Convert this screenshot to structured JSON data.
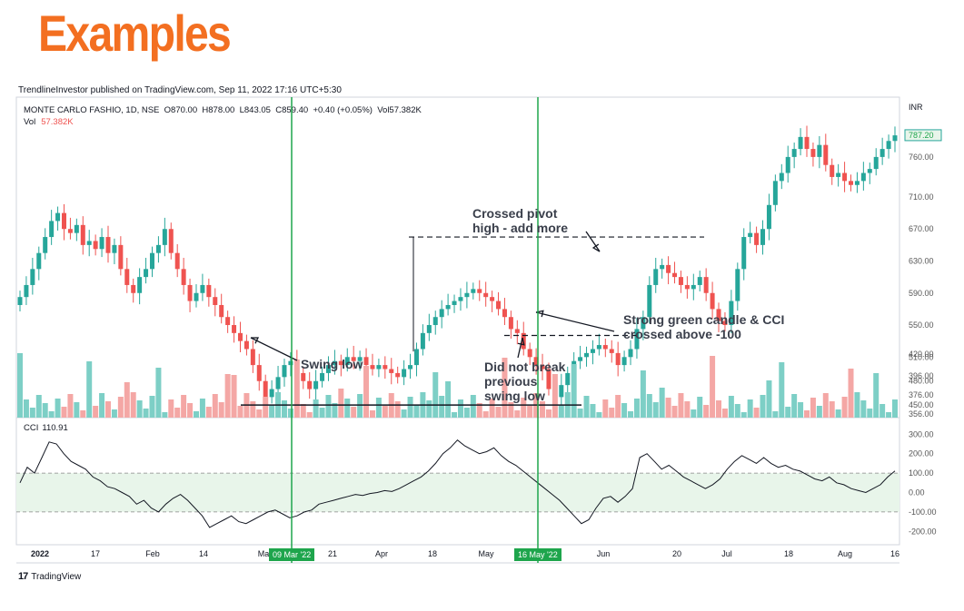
{
  "heading": "Examples",
  "published": "TrendlineInvestor published on TradingView.com, Sep 11, 2022 17:16 UTC+5:30",
  "legend": {
    "symbol": "MONTE CARLO FASHIO, 1D, NSE",
    "open": "O870.00",
    "high": "H878.00",
    "low": "L843.05",
    "close": "C859.40",
    "change": "+0.40 (+0.05%)",
    "volume": "Vol57.382K"
  },
  "vol_label": "Vol",
  "vol_value": "57.382K",
  "cci_label": "CCI",
  "cci_value": "110.91",
  "currency": "INR",
  "last_price": "787.20",
  "annotations": {
    "crossed_pivot_1": "Crossed pivot",
    "crossed_pivot_2": "high - add more",
    "strong_green_1": "Strong green candle & CCI",
    "strong_green_2": "crossed above -100",
    "swing_low": "Swing low",
    "did_not_break_1": "Did not break",
    "did_not_break_2": "previous",
    "did_not_break_3": "swing low"
  },
  "marker_dates": [
    "09 Mar '22",
    "16 May '22"
  ],
  "tradingview_logo": "TradingView",
  "colors": {
    "heading": "#f36f21",
    "up": "#26a69a",
    "down": "#ef5350",
    "marker": "#1ea54c",
    "cci_band": "#e8f5ea"
  },
  "chart_data": [
    {
      "type": "candlestick",
      "title": "MONTE CARLO FASHIO, 1D, NSE",
      "ylabel": "INR",
      "ylim": [
        440,
        820
      ],
      "y_ticks": [
        "760.00",
        "710.00",
        "670.00",
        "630.00",
        "590.00",
        "550.00",
        "510.00",
        "480.00",
        "450.00"
      ],
      "x_ticks": [
        "2022",
        "17",
        "Feb",
        "14",
        "Ma",
        "21",
        "Apr",
        "18",
        "May",
        "Jun",
        "20",
        "Jul",
        "18",
        "Aug",
        "16"
      ],
      "pivot_high": 660,
      "breakout_level": 537,
      "swing_low_level": 450,
      "close": [
        585,
        600,
        620,
        640,
        660,
        680,
        690,
        670,
        665,
        675,
        650,
        655,
        645,
        660,
        640,
        650,
        620,
        600,
        590,
        610,
        620,
        640,
        650,
        670,
        640,
        620,
        600,
        580,
        590,
        600,
        585,
        575,
        560,
        550,
        540,
        530,
        520,
        500,
        480,
        460,
        470,
        485,
        500,
        505,
        490,
        480,
        470,
        480,
        490,
        500,
        505,
        500,
        510,
        505,
        510,
        500,
        495,
        500,
        495,
        490,
        485,
        495,
        500,
        520,
        540,
        550,
        560,
        570,
        575,
        580,
        585,
        590,
        595,
        590,
        585,
        580,
        570,
        560,
        545,
        540,
        520,
        510,
        500,
        495,
        470,
        460,
        475,
        490,
        505,
        510,
        515,
        520,
        525,
        520,
        515,
        500,
        510,
        520,
        545,
        560,
        600,
        620,
        625,
        615,
        610,
        600,
        595,
        600,
        610,
        590,
        570,
        555,
        550,
        580,
        620,
        660,
        665,
        650,
        670,
        700,
        730,
        740,
        760,
        770,
        785,
        770,
        760,
        775,
        750,
        735,
        740,
        730,
        725,
        730,
        740,
        745,
        760,
        770,
        780,
        787
      ]
    },
    {
      "type": "bar",
      "title": "Vol",
      "y_ticks": [
        "420.00",
        "396.00",
        "376.00",
        "356.00"
      ],
      "last": "57.382K"
    },
    {
      "type": "line",
      "title": "CCI",
      "last": 110.91,
      "ylim": [
        -250,
        320
      ],
      "y_ticks": [
        "300.00",
        "200.00",
        "100.00",
        "0.00",
        "-100.00",
        "-200.00"
      ],
      "bands": [
        100,
        -100
      ],
      "values": [
        50,
        130,
        100,
        180,
        260,
        250,
        200,
        160,
        140,
        120,
        80,
        60,
        30,
        20,
        0,
        -20,
        -60,
        -40,
        -80,
        -100,
        -60,
        -30,
        -10,
        -40,
        -80,
        -120,
        -180,
        -160,
        -140,
        -120,
        -150,
        -160,
        -140,
        -120,
        -100,
        -90,
        -110,
        -130,
        -120,
        -100,
        -90,
        -60,
        -50,
        -40,
        -30,
        -20,
        -10,
        -15,
        -5,
        0,
        10,
        5,
        20,
        40,
        60,
        80,
        110,
        150,
        200,
        230,
        270,
        240,
        220,
        200,
        210,
        230,
        190,
        160,
        140,
        110,
        80,
        50,
        20,
        -10,
        -40,
        -80,
        -120,
        -160,
        -140,
        -80,
        -30,
        -20,
        -50,
        -20,
        20,
        180,
        200,
        160,
        120,
        140,
        110,
        80,
        60,
        40,
        20,
        40,
        70,
        120,
        160,
        190,
        170,
        150,
        180,
        150,
        130,
        140,
        120,
        110,
        90,
        70,
        60,
        80,
        50,
        40,
        20,
        10,
        0,
        20,
        40,
        80,
        111
      ]
    }
  ]
}
